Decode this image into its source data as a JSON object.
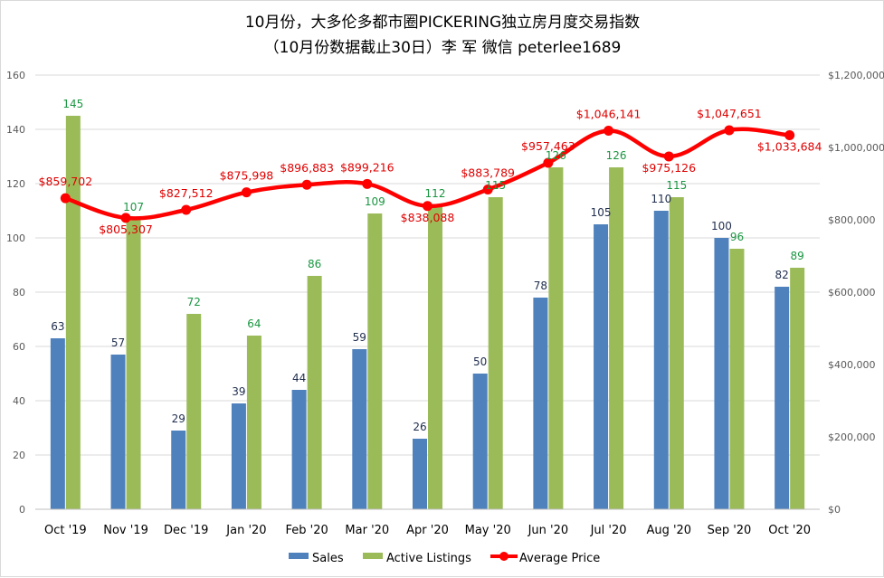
{
  "chart_data": {
    "type": "bar",
    "title_line1": "10月份，大多伦多都市圈PICKERING独立房月度交易指数",
    "title_line2": "（10月份数据截止30日）李 军  微信  peterlee1689",
    "categories": [
      "Oct '19",
      "Nov '19",
      "Dec '19",
      "Jan '20",
      "Feb '20",
      "Mar '20",
      "Apr '20",
      "May '20",
      "Jun '20",
      "Jul '20",
      "Aug '20",
      "Sep '20",
      "Oct '20"
    ],
    "series": [
      {
        "name": "Sales",
        "type": "bar",
        "axis": "left",
        "color": "#4f81bd",
        "values": [
          63,
          57,
          29,
          39,
          44,
          59,
          26,
          50,
          78,
          105,
          110,
          100,
          82
        ]
      },
      {
        "name": "Active Listings",
        "type": "bar",
        "axis": "left",
        "color": "#9bbb59",
        "values": [
          145,
          107,
          72,
          64,
          86,
          109,
          112,
          115,
          126,
          126,
          115,
          96,
          89
        ]
      },
      {
        "name": "Average Price",
        "type": "line",
        "axis": "right",
        "color": "#ff0000",
        "values": [
          859702,
          805307,
          827512,
          875998,
          896883,
          899216,
          838088,
          883789,
          957463,
          1046141,
          975126,
          1047651,
          1033684
        ],
        "labels": [
          "$859,702",
          "$805,307",
          "$827,512",
          "$875,998",
          "$896,883",
          "$899,216",
          "$838,088",
          "$883,789",
          "$957,463",
          "$1,046,141",
          "$975,126",
          "$1,047,651",
          "$1,033,684"
        ]
      }
    ],
    "y_left": {
      "min": 0,
      "max": 160,
      "ticks": [
        "0",
        "20",
        "40",
        "60",
        "80",
        "100",
        "120",
        "140",
        "160"
      ]
    },
    "y_right": {
      "min": 0,
      "max": 1200000,
      "ticks": [
        "$0",
        "$200,000",
        "$400,000",
        "$600,000",
        "$800,000",
        "$1,000,000",
        "$1,200,000"
      ]
    },
    "legend": {
      "position": "bottom",
      "items": [
        "Sales",
        "Active Listings",
        "Average Price"
      ]
    },
    "grid": true
  }
}
